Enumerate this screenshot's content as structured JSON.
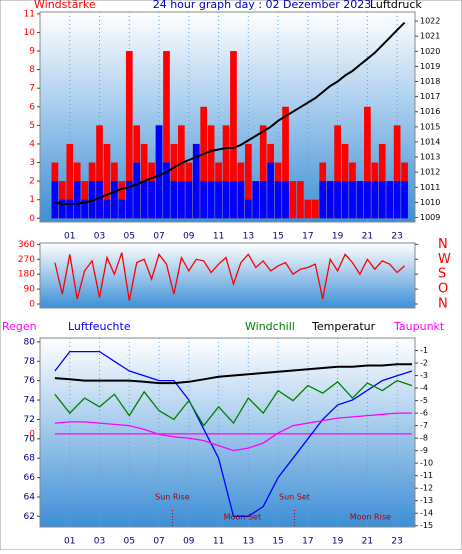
{
  "chart_data": [
    {
      "type": "bar",
      "title": "24 hour graph day : 02 Dezember 2023",
      "y_label": "Windstärke",
      "y2_label": "Luftdruck",
      "x": [
        0,
        0.5,
        1,
        1.5,
        2,
        2.5,
        3,
        3.5,
        4,
        4.5,
        5,
        5.5,
        6,
        6.5,
        7,
        7.5,
        8,
        8.5,
        9,
        9.5,
        10,
        10.5,
        11,
        11.5,
        12,
        12.5,
        13,
        13.5,
        14,
        14.5,
        15,
        15.5,
        16,
        16.5,
        17,
        17.5,
        18,
        18.5,
        19,
        19.5,
        20,
        20.5,
        21,
        21.5,
        22,
        22.5,
        23,
        23.5
      ],
      "series": [
        {
          "color": "#ff0000",
          "values": [
            3,
            2,
            4,
            3,
            2,
            3,
            5,
            4,
            3,
            2,
            9,
            5,
            4,
            3,
            5,
            9,
            4,
            5,
            3,
            4,
            6,
            5,
            3,
            5,
            9,
            3,
            4,
            2,
            5,
            4,
            3,
            6,
            2,
            2,
            1,
            1,
            3,
            2,
            5,
            4,
            3,
            2,
            6,
            3,
            4,
            2,
            5,
            3
          ]
        },
        {
          "color": "#0000ff",
          "values": [
            2,
            1,
            1,
            2,
            1,
            2,
            2,
            1,
            2,
            1,
            2,
            3,
            2,
            2,
            5,
            3,
            2,
            2,
            2,
            4,
            2,
            2,
            2,
            2,
            2,
            2,
            1,
            2,
            2,
            3,
            2,
            2,
            0,
            0,
            0,
            0,
            2,
            2,
            2,
            2,
            2,
            2,
            2,
            2,
            2,
            2,
            2,
            2
          ]
        },
        {
          "color": "#000000",
          "axis": "y2",
          "values": [
            1010,
            1009.9,
            1009.9,
            1009.9,
            1010,
            1010.1,
            1010.3,
            1010.5,
            1010.7,
            1010.9,
            1011,
            1011.2,
            1011.4,
            1011.6,
            1011.8,
            1012,
            1012.3,
            1012.6,
            1012.8,
            1013,
            1013.2,
            1013.4,
            1013.5,
            1013.6,
            1013.6,
            1013.8,
            1014.1,
            1014.4,
            1014.7,
            1015,
            1015.4,
            1015.7,
            1016,
            1016.3,
            1016.6,
            1016.9,
            1017.3,
            1017.7,
            1018,
            1018.4,
            1018.7,
            1019.1,
            1019.5,
            1019.9,
            1020.4,
            1020.9,
            1021.4,
            1021.9
          ]
        }
      ],
      "xlim": [
        -1,
        24.2
      ],
      "xticks": [
        {
          "value": 1,
          "label": "01"
        },
        {
          "value": 3,
          "label": "03"
        },
        {
          "value": 5,
          "label": "05"
        },
        {
          "value": 7,
          "label": "07"
        },
        {
          "value": 9,
          "label": "09"
        },
        {
          "value": 11,
          "label": "11"
        },
        {
          "value": 13,
          "label": "13"
        },
        {
          "value": 15,
          "label": "15"
        },
        {
          "value": 17,
          "label": "17"
        },
        {
          "value": 19,
          "label": "19"
        },
        {
          "value": 21,
          "label": "21"
        },
        {
          "value": 23,
          "label": "23"
        }
      ],
      "ylim": [
        -0.2,
        11.1
      ],
      "yticks": [
        0,
        1,
        2,
        3,
        4,
        5,
        6,
        7,
        8,
        9,
        10,
        11
      ],
      "ytick_color": "#ff0000",
      "y2lim": [
        1008.7,
        1022.6
      ],
      "y2ticks": [
        1009,
        1010,
        1011,
        1012,
        1013,
        1014,
        1015,
        1016,
        1017,
        1018,
        1019,
        1020,
        1021,
        1022
      ],
      "y2tick_color": "#000000",
      "grid": true
    },
    {
      "type": "line",
      "x": [
        0,
        0.5,
        1,
        1.5,
        2,
        2.5,
        3,
        3.5,
        4,
        4.5,
        5,
        5.5,
        6,
        6.5,
        7,
        7.5,
        8,
        8.5,
        9,
        9.5,
        10,
        10.5,
        11,
        11.5,
        12,
        12.5,
        13,
        13.5,
        14,
        14.5,
        15,
        15.5,
        16,
        16.5,
        17,
        17.5,
        18,
        18.5,
        19,
        19.5,
        20,
        20.5,
        21,
        21.5,
        22,
        22.5,
        23,
        23.5
      ],
      "series": [
        {
          "color": "#ff0000",
          "values": [
            250,
            60,
            300,
            30,
            200,
            260,
            40,
            280,
            180,
            310,
            20,
            250,
            270,
            150,
            300,
            240,
            60,
            280,
            200,
            270,
            260,
            190,
            240,
            280,
            120,
            250,
            300,
            220,
            260,
            200,
            230,
            250,
            180,
            210,
            220,
            240,
            30,
            270,
            200,
            300,
            250,
            180,
            270,
            210,
            260,
            240,
            190,
            230
          ]
        }
      ],
      "xlim": [
        -1,
        24.2
      ],
      "ylim": [
        -24,
        368
      ],
      "yticks": [
        0,
        90,
        180,
        270,
        360
      ],
      "ytick_color": "#ff0000",
      "y2lim": [
        -24,
        368
      ],
      "y2ticks": [
        {
          "value": 360,
          "label": "N"
        },
        {
          "value": 270,
          "label": "W"
        },
        {
          "value": 180,
          "label": "S"
        },
        {
          "value": 90,
          "label": "O"
        },
        {
          "value": 0,
          "label": "N"
        }
      ],
      "y2tick_color": "#ff0000",
      "grid": true
    },
    {
      "type": "line",
      "x": [
        0,
        1,
        2,
        3,
        4,
        5,
        6,
        7,
        8,
        9,
        10,
        11,
        12,
        13,
        14,
        15,
        16,
        17,
        18,
        19,
        20,
        21,
        22,
        23,
        24
      ],
      "series": [
        {
          "name": "Regen",
          "color": "#ff00ff",
          "axis": "rain",
          "values": [
            0,
            0,
            0,
            0,
            0,
            0,
            0,
            0,
            0,
            0,
            0,
            0,
            0,
            0,
            0,
            0,
            0,
            0,
            0,
            0,
            0,
            0,
            0,
            0,
            0
          ]
        },
        {
          "name": "Luftfeuchte",
          "color": "#0000ff",
          "values": [
            77,
            79,
            79,
            79,
            78,
            77,
            76.5,
            76,
            76,
            74,
            71,
            68,
            62,
            62,
            63,
            66,
            68,
            70,
            72,
            73.5,
            74,
            75,
            76,
            76.5,
            77
          ]
        },
        {
          "name": "Windchill",
          "color": "#008000",
          "axis": "y2",
          "values": [
            -4.5,
            -6,
            -4.8,
            -5.5,
            -4.5,
            -6.2,
            -4.3,
            -5.8,
            -6.5,
            -5,
            -7,
            -5.5,
            -6.8,
            -4.8,
            -6,
            -4.2,
            -5,
            -3.8,
            -4.4,
            -3.5,
            -4.8,
            -3.6,
            -4.2,
            -3.4,
            -3.8
          ]
        },
        {
          "name": "Temperatur",
          "color": "#000000",
          "axis": "y2",
          "values": [
            -3.2,
            -3.3,
            -3.4,
            -3.4,
            -3.4,
            -3.4,
            -3.5,
            -3.6,
            -3.6,
            -3.5,
            -3.3,
            -3.1,
            -3,
            -2.9,
            -2.8,
            -2.7,
            -2.6,
            -2.5,
            -2.4,
            -2.3,
            -2.3,
            -2.2,
            -2.2,
            -2.1,
            -2.1
          ]
        },
        {
          "name": "Taupunkt",
          "color": "#ff00ff",
          "axis": "y2",
          "values": [
            -6.8,
            -6.7,
            -6.7,
            -6.8,
            -6.9,
            -7,
            -7.3,
            -7.7,
            -7.9,
            -8,
            -8.2,
            -8.6,
            -9,
            -8.8,
            -8.4,
            -7.6,
            -7,
            -6.8,
            -6.6,
            -6.4,
            -6.3,
            -6.2,
            -6.1,
            -6,
            -6
          ]
        }
      ],
      "xlim": [
        -1,
        24.2
      ],
      "xticks": [
        {
          "value": 1,
          "label": "01"
        },
        {
          "value": 3,
          "label": "03"
        },
        {
          "value": 5,
          "label": "05"
        },
        {
          "value": 7,
          "label": "07"
        },
        {
          "value": 9,
          "label": "09"
        },
        {
          "value": 11,
          "label": "11"
        },
        {
          "value": 13,
          "label": "13"
        },
        {
          "value": 15,
          "label": "15"
        },
        {
          "value": 17,
          "label": "17"
        },
        {
          "value": 19,
          "label": "19"
        },
        {
          "value": 21,
          "label": "21"
        },
        {
          "value": 23,
          "label": "23"
        }
      ],
      "ylim": [
        60.9,
        80.4
      ],
      "yticks": [
        62,
        64,
        66,
        68,
        70,
        72,
        74,
        76,
        78,
        80
      ],
      "ytick_color": "#000080",
      "y2lim": [
        -15.1,
        0
      ],
      "y2ticks": [
        -1,
        -2,
        -3,
        -4,
        -5,
        -6,
        -7,
        -8,
        -9,
        -10,
        -11,
        -12,
        -13,
        -14,
        -15
      ],
      "y2tick_color": "#000000",
      "rainlim": [
        -1,
        1.03
      ],
      "rainticks": [
        0
      ],
      "raintick_color": "#ff0000",
      "annotations": [
        {
          "text": "Sun Rise",
          "x": 7.9,
          "line": true
        },
        {
          "text": "Moon Set",
          "x": 12.6,
          "line": false
        },
        {
          "text": "Sun Set",
          "x": 16.1,
          "line": true
        },
        {
          "text": "Moon Rise",
          "x": 21.2,
          "line": false
        }
      ],
      "annotation_color": "#b00000",
      "grid": true
    }
  ]
}
